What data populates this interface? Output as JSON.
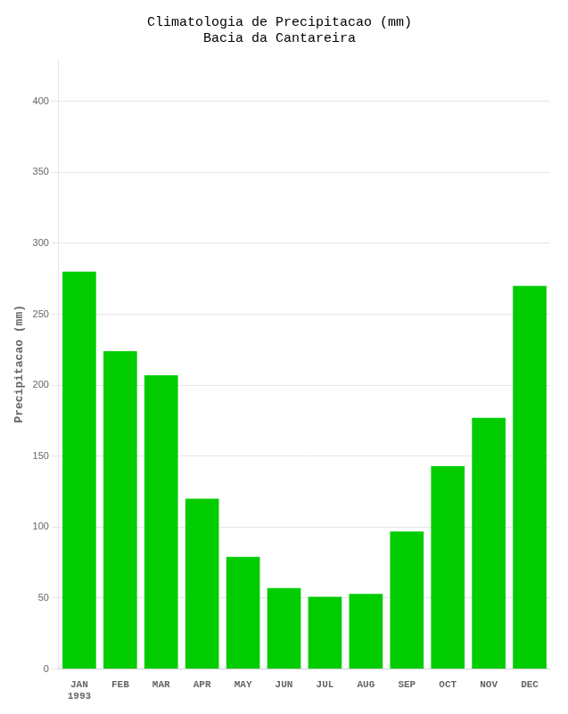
{
  "chart_data": {
    "type": "bar",
    "title": "Climatologia de Precipitacao (mm)\nBacia da Cantareira",
    "y_label": "Precipitacao (mm)",
    "categories": [
      "JAN",
      "FEB",
      "MAR",
      "APR",
      "MAY",
      "JUN",
      "JUL",
      "AUG",
      "SEP",
      "OCT",
      "NOV",
      "DEC"
    ],
    "values": [
      280,
      224,
      207,
      120,
      79,
      57,
      51,
      53,
      97,
      143,
      177,
      270
    ],
    "color": "#00CC00",
    "ylim": [
      0,
      430
    ],
    "yticks": [
      0,
      50,
      100,
      150,
      200,
      250,
      300,
      350,
      400
    ],
    "grid": true,
    "annotations": [
      {
        "text": "1993",
        "category": "JAN"
      }
    ]
  }
}
